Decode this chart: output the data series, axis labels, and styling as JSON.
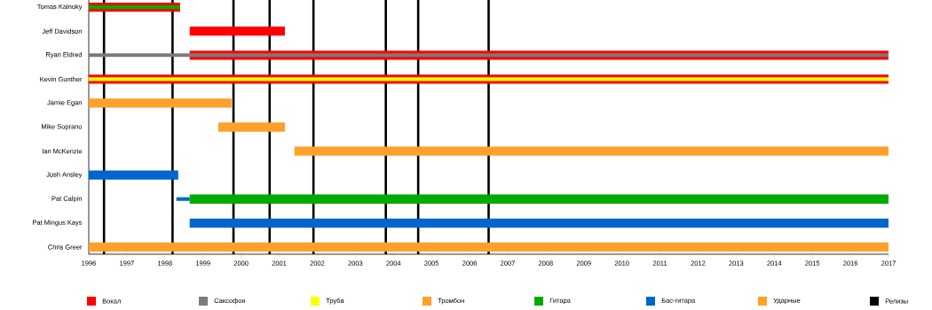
{
  "chart_data": {
    "type": "bar",
    "orientation": "horizontal",
    "categories": [
      "Tomas Kalnoky",
      "Jeff Davidson",
      "Ryan Eldred",
      "Kevin Gunther",
      "Jamie Egan",
      "Mike Soprano",
      "Ian McKenzie",
      "Josh Ansley",
      "Pat Calpin",
      "Pat Mingus Kays",
      "Chris Greer"
    ],
    "xlim": [
      1996,
      2017
    ],
    "xticks": [
      1996,
      1997,
      1998,
      1999,
      2000,
      2001,
      2002,
      2003,
      2004,
      2005,
      2006,
      2007,
      2008,
      2009,
      2010,
      2011,
      2012,
      2013,
      2014,
      2015,
      2016,
      2017
    ],
    "series": [
      {
        "name": "Вокал",
        "color": "#ff0000",
        "base": [
          1996,
          1998.65,
          1998.65,
          1996,
          null,
          null,
          null,
          null,
          null,
          null,
          null
        ],
        "values": [
          2.4,
          2.5,
          18.35,
          21,
          null,
          null,
          null,
          null,
          null,
          null,
          null
        ]
      },
      {
        "name": "Саксофон",
        "color": "#7a7a7a",
        "base": [
          null,
          null,
          1996,
          null,
          null,
          null,
          null,
          null,
          null,
          null,
          null
        ],
        "values": [
          null,
          null,
          21,
          null,
          null,
          null,
          null,
          null,
          null,
          null,
          null
        ]
      },
      {
        "name": "Труба",
        "color": "#ffff00",
        "base": [
          null,
          null,
          null,
          1996,
          null,
          null,
          null,
          null,
          null,
          null,
          null
        ],
        "values": [
          null,
          null,
          null,
          21,
          null,
          null,
          null,
          null,
          null,
          null,
          null
        ]
      },
      {
        "name": "Тромбон",
        "color": "#ffa02a",
        "base": [
          null,
          null,
          null,
          null,
          1996,
          1999.4,
          2001.4,
          null,
          null,
          null,
          null
        ],
        "values": [
          null,
          null,
          null,
          null,
          3.75,
          1.75,
          15.6,
          null,
          null,
          null,
          null
        ]
      },
      {
        "name": "Гитара",
        "color": "#00aa00",
        "base": [
          1996,
          null,
          null,
          null,
          null,
          null,
          null,
          null,
          1998.65,
          null,
          null
        ],
        "values": [
          2.4,
          null,
          null,
          null,
          null,
          null,
          null,
          null,
          18.35,
          null,
          null
        ]
      },
      {
        "name": "Бас-гитара",
        "color": "#0066cc",
        "base": [
          null,
          null,
          null,
          null,
          null,
          null,
          null,
          1996,
          1998.3,
          1998.65,
          null
        ],
        "values": [
          null,
          null,
          null,
          null,
          null,
          null,
          null,
          2.35,
          0.35,
          18.35,
          null
        ]
      },
      {
        "name": "Ударные",
        "color": "#ffa02a",
        "base": [
          null,
          null,
          null,
          null,
          null,
          null,
          null,
          null,
          null,
          null,
          1996
        ],
        "values": [
          null,
          null,
          null,
          null,
          null,
          null,
          null,
          null,
          null,
          null,
          21
        ]
      }
    ],
    "ref_lines": [
      {
        "axis": "x",
        "value": 1996.4,
        "color": "#000000"
      },
      {
        "axis": "x",
        "value": 1998.2,
        "color": "#000000"
      },
      {
        "axis": "x",
        "value": 1999.8,
        "color": "#000000"
      },
      {
        "axis": "x",
        "value": 2000.75,
        "color": "#000000"
      },
      {
        "axis": "x",
        "value": 2001.9,
        "color": "#000000"
      },
      {
        "axis": "x",
        "value": 2003.8,
        "color": "#000000"
      },
      {
        "axis": "x",
        "value": 2004.65,
        "color": "#000000"
      },
      {
        "axis": "x",
        "value": 2006.5,
        "color": "#000000"
      }
    ],
    "annotations": [
      "Релизы"
    ],
    "legend": "bottom"
  }
}
